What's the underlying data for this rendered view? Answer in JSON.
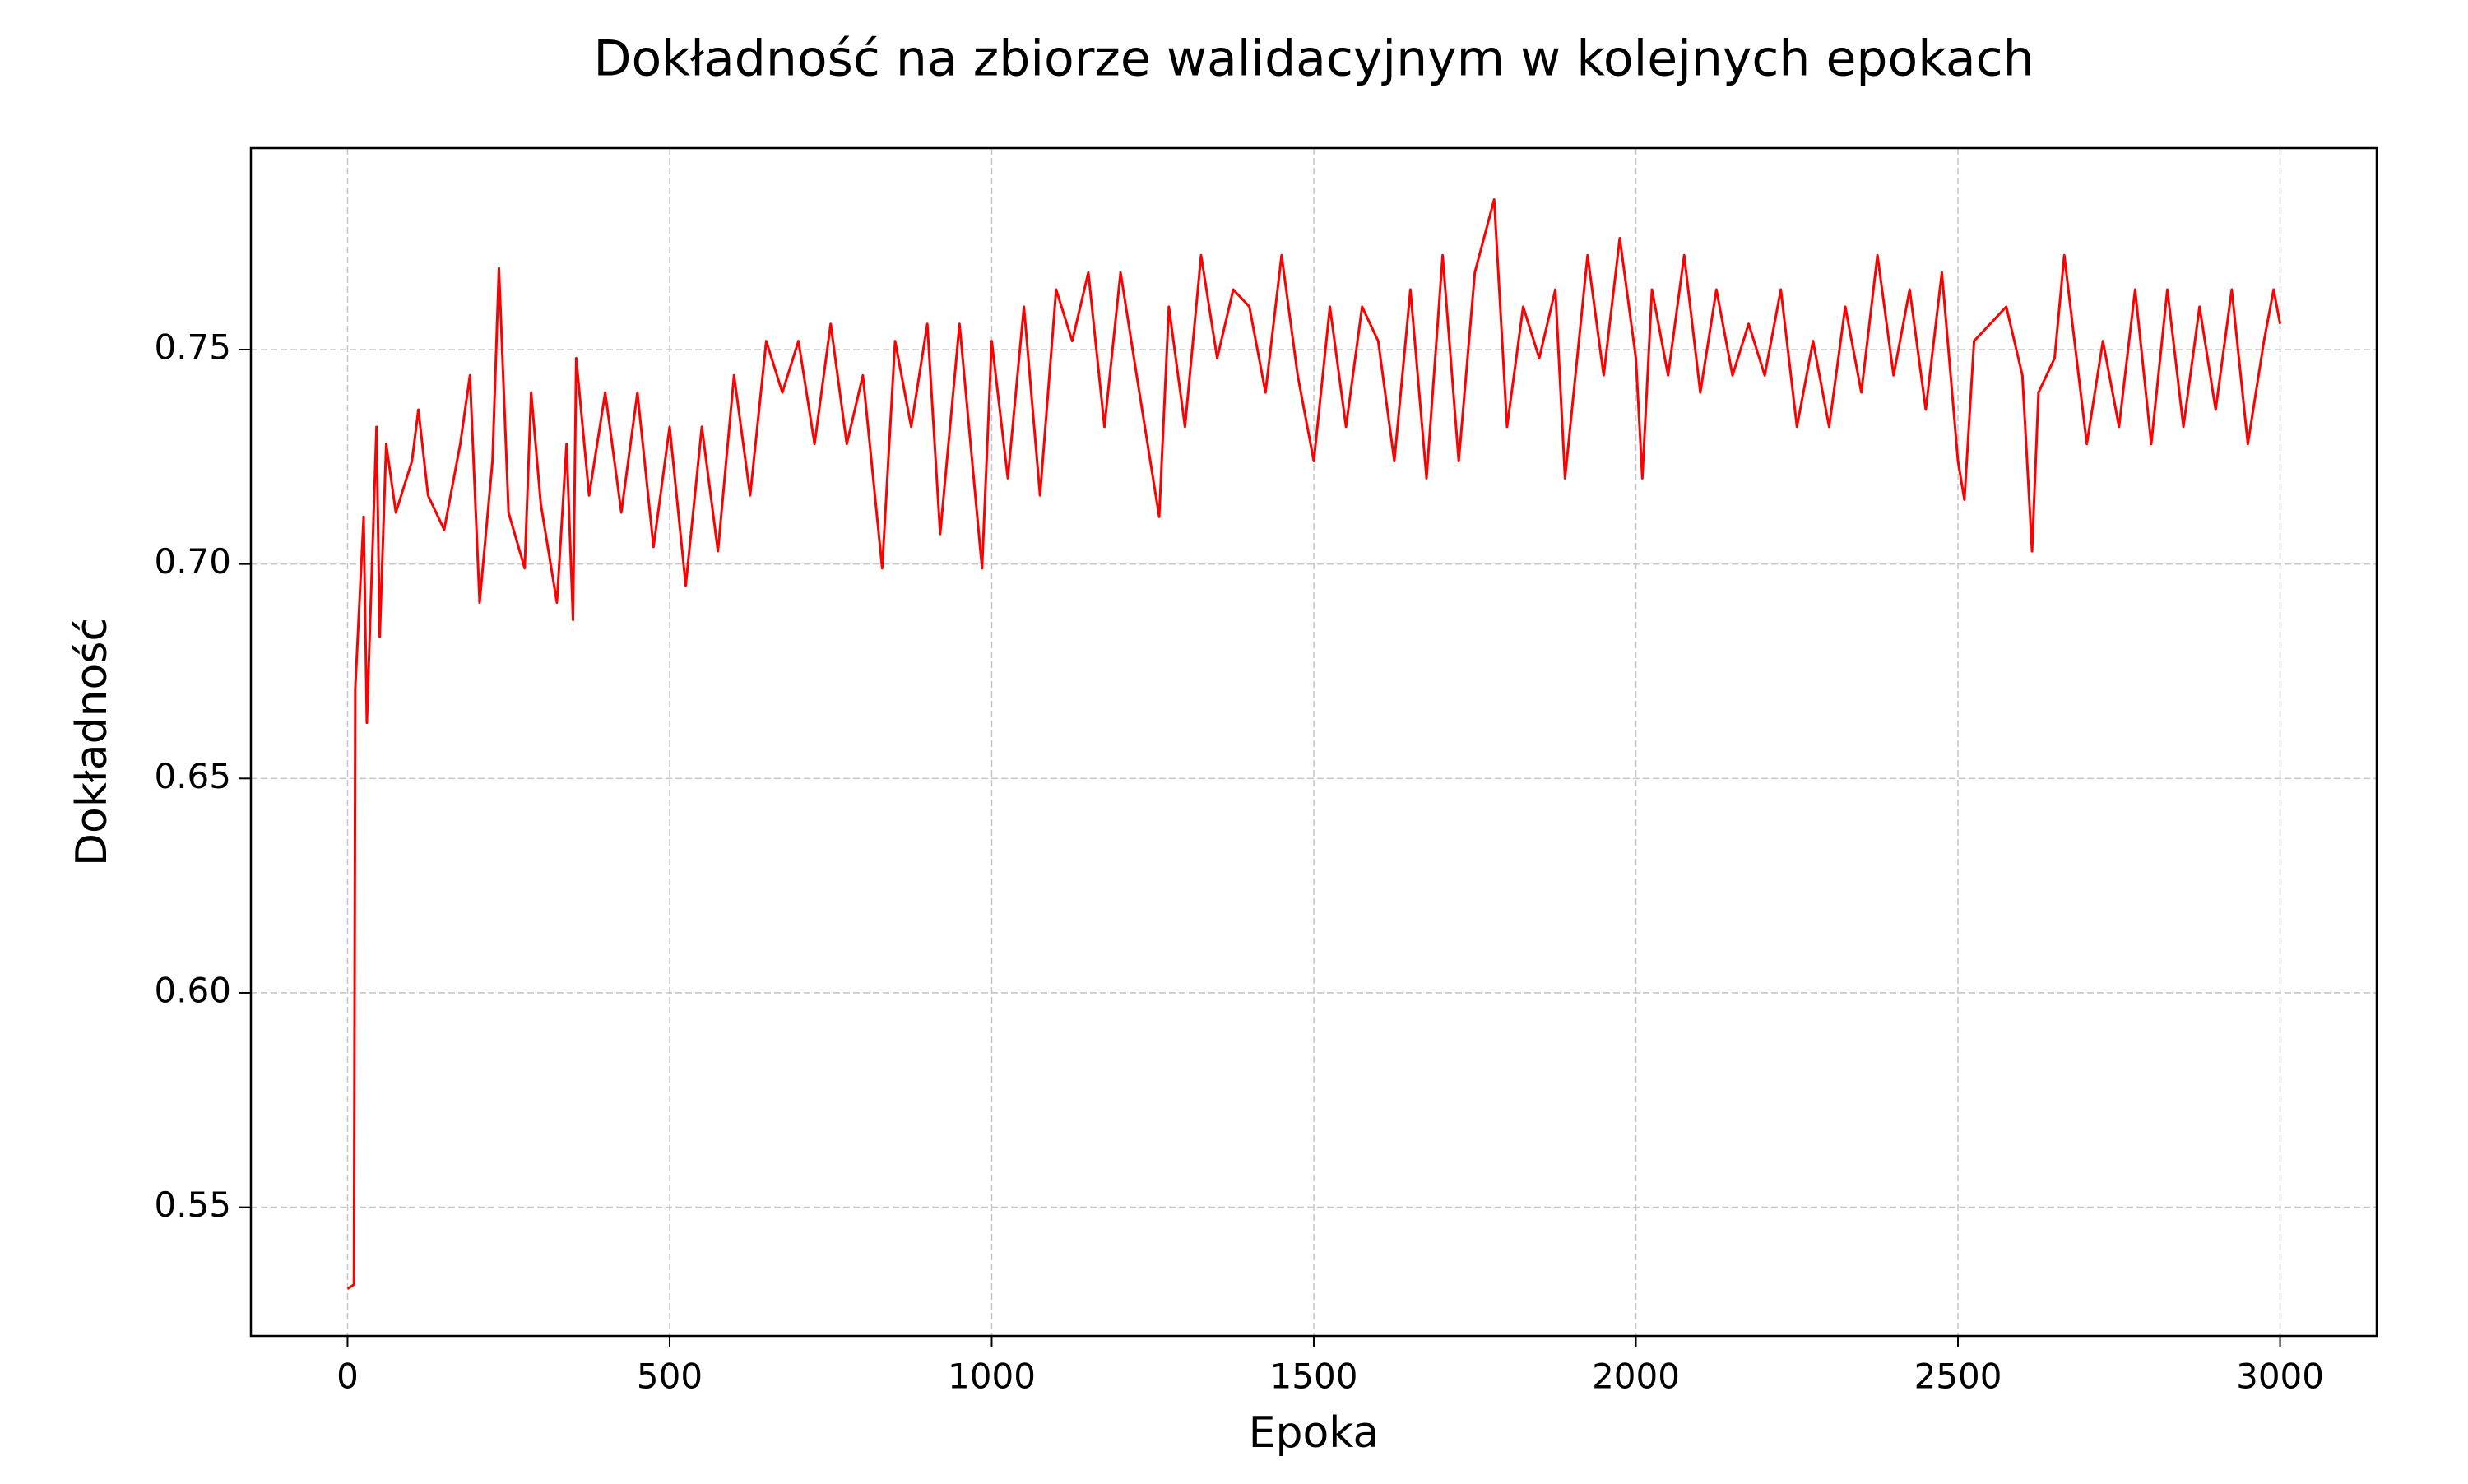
{
  "chart_data": {
    "type": "line",
    "title": "Dokładność na zbiorze walidacyjnym w kolejnych epokach",
    "xlabel": "Epoka",
    "ylabel": "Dokładność",
    "x": [
      0,
      10,
      12,
      25,
      30,
      45,
      50,
      60,
      75,
      100,
      110,
      125,
      150,
      175,
      190,
      205,
      225,
      235,
      250,
      275,
      285,
      300,
      325,
      340,
      350,
      355,
      375,
      400,
      425,
      450,
      475,
      500,
      525,
      550,
      575,
      600,
      625,
      650,
      675,
      700,
      725,
      750,
      775,
      800,
      830,
      850,
      875,
      900,
      920,
      950,
      985,
      1000,
      1025,
      1050,
      1075,
      1100,
      1125,
      1150,
      1175,
      1200,
      1225,
      1260,
      1275,
      1300,
      1325,
      1350,
      1375,
      1400,
      1425,
      1450,
      1475,
      1500,
      1525,
      1550,
      1575,
      1600,
      1625,
      1650,
      1675,
      1700,
      1725,
      1750,
      1780,
      1800,
      1825,
      1850,
      1875,
      1890,
      1925,
      1950,
      1975,
      2000,
      2010,
      2025,
      2050,
      2075,
      2100,
      2125,
      2150,
      2175,
      2200,
      2225,
      2250,
      2275,
      2300,
      2325,
      2350,
      2375,
      2400,
      2425,
      2450,
      2475,
      2500,
      2510,
      2525,
      2550,
      2575,
      2600,
      2615,
      2625,
      2650,
      2665,
      2700,
      2725,
      2750,
      2775,
      2800,
      2825,
      2850,
      2875,
      2900,
      2925,
      2950,
      2975,
      2990,
      3000
    ],
    "series": [
      {
        "color": "#ff0000",
        "values": [
          0.531,
          0.532,
          0.671,
          0.711,
          0.663,
          0.732,
          0.683,
          0.728,
          0.712,
          0.724,
          0.736,
          0.716,
          0.708,
          0.728,
          0.744,
          0.691,
          0.724,
          0.769,
          0.712,
          0.699,
          0.74,
          0.714,
          0.691,
          0.728,
          0.687,
          0.748,
          0.716,
          0.74,
          0.712,
          0.74,
          0.704,
          0.732,
          0.695,
          0.732,
          0.703,
          0.744,
          0.716,
          0.752,
          0.74,
          0.752,
          0.728,
          0.756,
          0.728,
          0.744,
          0.699,
          0.752,
          0.732,
          0.756,
          0.707,
          0.756,
          0.699,
          0.752,
          0.72,
          0.76,
          0.716,
          0.764,
          0.752,
          0.768,
          0.732,
          0.768,
          0.744,
          0.711,
          0.76,
          0.732,
          0.772,
          0.748,
          0.764,
          0.76,
          0.74,
          0.772,
          0.744,
          0.724,
          0.76,
          0.732,
          0.76,
          0.752,
          0.724,
          0.764,
          0.72,
          0.772,
          0.724,
          0.768,
          0.785,
          0.732,
          0.76,
          0.748,
          0.764,
          0.72,
          0.772,
          0.744,
          0.776,
          0.748,
          0.72,
          0.764,
          0.744,
          0.772,
          0.74,
          0.764,
          0.744,
          0.756,
          0.744,
          0.764,
          0.732,
          0.752,
          0.732,
          0.76,
          0.74,
          0.772,
          0.744,
          0.764,
          0.736,
          0.768,
          0.724,
          0.715,
          0.752,
          0.756,
          0.76,
          0.744,
          0.703,
          0.74,
          0.748,
          0.772,
          0.728,
          0.752,
          0.732,
          0.764,
          0.728,
          0.764,
          0.732,
          0.76,
          0.736,
          0.764,
          0.728,
          0.752,
          0.764,
          0.756
        ]
      }
    ],
    "xlim": [
      -150,
      3150
    ],
    "ylim": [
      0.52,
      0.797
    ],
    "xticks": [
      0,
      500,
      1000,
      1500,
      2000,
      2500,
      3000
    ],
    "yticks": [
      {
        "value": 0.55,
        "label": "0.55"
      },
      {
        "value": 0.6,
        "label": "0.60"
      },
      {
        "value": 0.65,
        "label": "0.65"
      },
      {
        "value": 0.7,
        "label": "0.70"
      },
      {
        "value": 0.75,
        "label": "0.75"
      }
    ],
    "grid": true
  }
}
